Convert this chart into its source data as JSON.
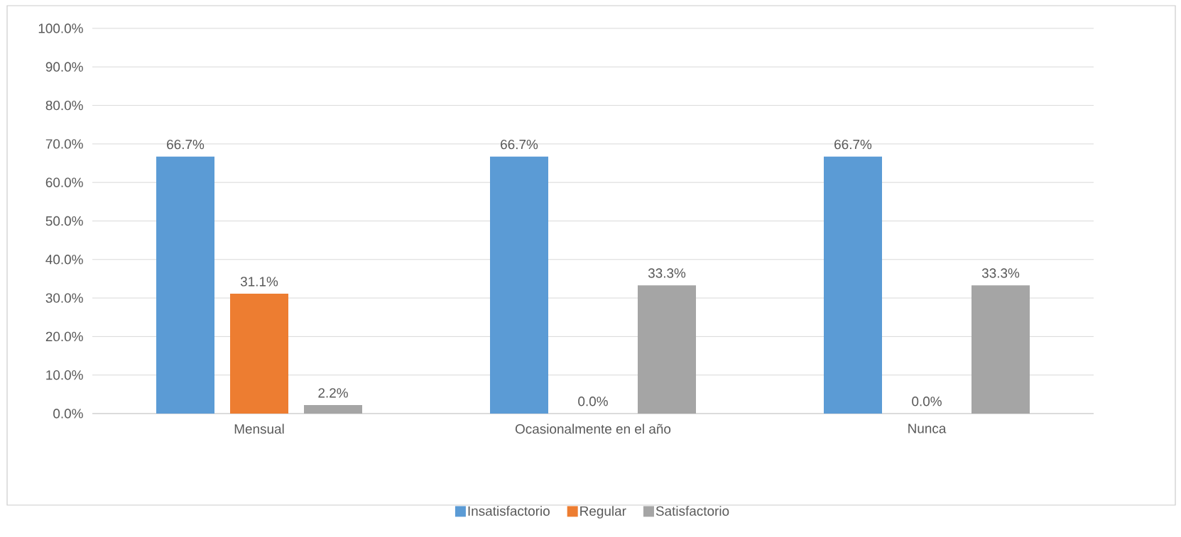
{
  "chart_data": {
    "type": "bar",
    "categories": [
      "Mensual",
      "Ocasionalmente en el año",
      "Nunca"
    ],
    "series": [
      {
        "name": "Insatisfactorio",
        "color": "#5b9bd5",
        "values": [
          66.7,
          66.7,
          66.7
        ],
        "value_labels": [
          "66.7%",
          "66.7%",
          "66.7%"
        ]
      },
      {
        "name": "Regular",
        "color": "#ed7d31",
        "values": [
          31.1,
          0.0,
          0.0
        ],
        "value_labels": [
          "31.1%",
          "0.0%",
          "0.0%"
        ]
      },
      {
        "name": "Satisfactorio",
        "color": "#a5a5a5",
        "values": [
          2.2,
          33.3,
          33.3
        ],
        "value_labels": [
          "2.2%",
          "33.3%",
          "33.3%"
        ]
      }
    ],
    "ylim": [
      0,
      100
    ],
    "yticks": [
      {
        "value": 0,
        "label": "0.0%"
      },
      {
        "value": 10,
        "label": "10.0%"
      },
      {
        "value": 20,
        "label": "20.0%"
      },
      {
        "value": 30,
        "label": "30.0%"
      },
      {
        "value": 40,
        "label": "40.0%"
      },
      {
        "value": 50,
        "label": "50.0%"
      },
      {
        "value": 60,
        "label": "60.0%"
      },
      {
        "value": 70,
        "label": "70.0%"
      },
      {
        "value": 80,
        "label": "80.0%"
      },
      {
        "value": 90,
        "label": "90.0%"
      },
      {
        "value": 100,
        "label": "100.0%"
      }
    ],
    "grid": "y",
    "legend": "bottom"
  }
}
